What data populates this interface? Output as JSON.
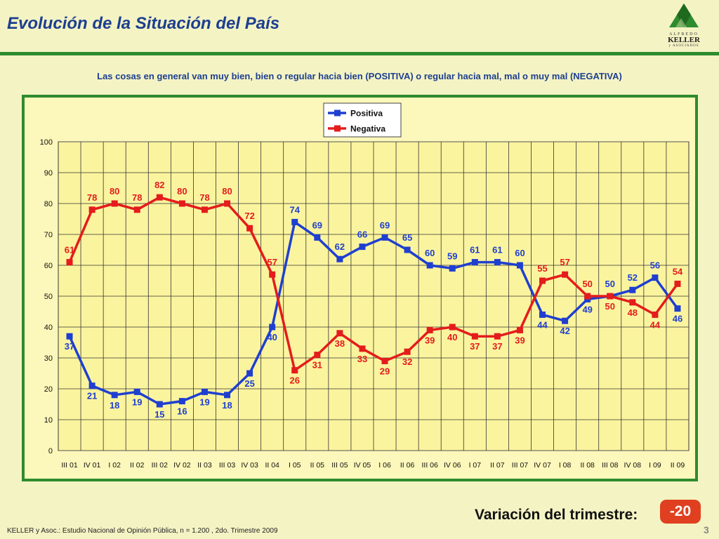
{
  "header": {
    "title": "Evolución de la Situación del País",
    "logo": {
      "top": "ALFREDO",
      "main": "KELLER",
      "sub": "y ASOCIADOS"
    }
  },
  "subtitle": "Las cosas en general van muy bien, bien o regular hacia bien (POSITIVA) o regular hacia mal, mal o muy mal (NEGATIVA)",
  "colors": {
    "positiva": "#1f3fd0",
    "negativa": "#e41c1c",
    "accent": "#2e8b2e"
  },
  "chart_data": {
    "type": "line",
    "title": "",
    "xlabel": "",
    "ylabel": "",
    "ylim": [
      0,
      100
    ],
    "yticks": [
      0,
      10,
      20,
      30,
      40,
      50,
      60,
      70,
      80,
      90,
      100
    ],
    "grid": true,
    "legend_position": "top-center",
    "categories": [
      "III 01",
      "IV 01",
      "I 02",
      "II 02",
      "III 02",
      "IV 02",
      "II 03",
      "III 03",
      "IV 03",
      "II 04",
      "I 05",
      "II 05",
      "III 05",
      "IV 05",
      "I 06",
      "II 06",
      "III 06",
      "IV 06",
      "I 07",
      "II 07",
      "III 07",
      "IV 07",
      "I 08",
      "II 08",
      "III 08",
      "IV 08",
      "I 09",
      "II 09"
    ],
    "series": [
      {
        "name": "Positiva",
        "color": "#1f3fd0",
        "values": [
          37,
          21,
          18,
          19,
          15,
          16,
          19,
          18,
          25,
          40,
          74,
          69,
          62,
          66,
          69,
          65,
          60,
          59,
          61,
          61,
          60,
          44,
          42,
          49,
          50,
          52,
          56,
          46
        ]
      },
      {
        "name": "Negativa",
        "color": "#e41c1c",
        "values": [
          61,
          78,
          80,
          78,
          82,
          80,
          78,
          80,
          72,
          57,
          26,
          31,
          38,
          33,
          29,
          32,
          39,
          40,
          37,
          37,
          39,
          55,
          57,
          50,
          50,
          48,
          44,
          54
        ]
      }
    ]
  },
  "variation": {
    "label": "Variación del trimestre:",
    "value": "-20"
  },
  "footer": "KELLER y Asoc.: Estudio Nacional de Opinión Pública, n = 1.200 , 2do. Trimestre 2009",
  "page_number": "3"
}
